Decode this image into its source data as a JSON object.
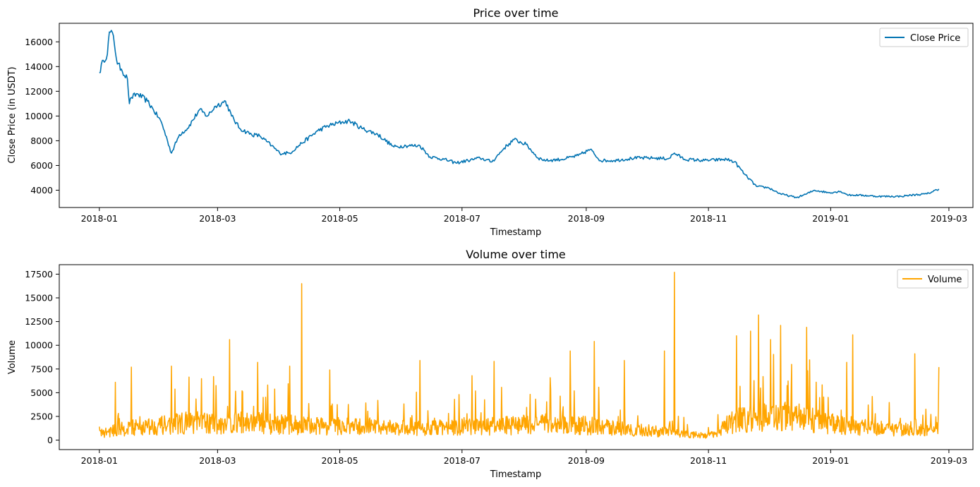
{
  "chart_data": [
    {
      "type": "line",
      "title": "Price over time",
      "xlabel": "Timestamp",
      "ylabel": "Close Price (in USDT)",
      "x_ticks": [
        "2018-01",
        "2018-03",
        "2018-05",
        "2018-07",
        "2018-09",
        "2018-11",
        "2019-01",
        "2019-03"
      ],
      "y_ticks": [
        "4000",
        "6000",
        "8000",
        "10000",
        "12000",
        "14000",
        "16000"
      ],
      "ylim": [
        2600,
        17500
      ],
      "xlim": [
        "2017-12-12",
        "2019-03-13"
      ],
      "legend": "top-right",
      "grid": false,
      "series": [
        {
          "name": "Close Price",
          "color": "#0173b2",
          "x": [
            "2018-01-01",
            "2018-01-03",
            "2018-01-05",
            "2018-01-06",
            "2018-01-08",
            "2018-01-10",
            "2018-01-12",
            "2018-01-15",
            "2018-01-16",
            "2018-01-17",
            "2018-01-20",
            "2018-01-25",
            "2018-01-28",
            "2018-02-01",
            "2018-02-04",
            "2018-02-06",
            "2018-02-10",
            "2018-02-14",
            "2018-02-20",
            "2018-02-24",
            "2018-02-28",
            "2018-03-05",
            "2018-03-08",
            "2018-03-12",
            "2018-03-18",
            "2018-03-22",
            "2018-03-28",
            "2018-04-01",
            "2018-04-06",
            "2018-04-12",
            "2018-04-20",
            "2018-04-25",
            "2018-05-02",
            "2018-05-06",
            "2018-05-12",
            "2018-05-20",
            "2018-05-28",
            "2018-06-03",
            "2018-06-10",
            "2018-06-15",
            "2018-06-22",
            "2018-06-28",
            "2018-07-04",
            "2018-07-10",
            "2018-07-16",
            "2018-07-22",
            "2018-07-27",
            "2018-08-02",
            "2018-08-08",
            "2018-08-12",
            "2018-08-20",
            "2018-08-28",
            "2018-09-03",
            "2018-09-08",
            "2018-09-15",
            "2018-09-25",
            "2018-10-05",
            "2018-10-12",
            "2018-10-15",
            "2018-10-20",
            "2018-10-30",
            "2018-11-10",
            "2018-11-14",
            "2018-11-19",
            "2018-11-25",
            "2018-12-01",
            "2018-12-07",
            "2018-12-15",
            "2018-12-20",
            "2018-12-24",
            "2018-12-31",
            "2019-01-06",
            "2019-01-10",
            "2019-01-15",
            "2019-01-25",
            "2019-02-05",
            "2019-02-10",
            "2019-02-18",
            "2019-02-24"
          ],
          "values": [
            13500,
            14500,
            15000,
            16800,
            16500,
            14200,
            13800,
            13000,
            11000,
            11500,
            11800,
            11200,
            10500,
            9500,
            8000,
            7000,
            8500,
            9000,
            10500,
            10000,
            10800,
            11200,
            10000,
            9000,
            8500,
            8400,
            7600,
            7000,
            7000,
            7800,
            8800,
            9200,
            9500,
            9600,
            9000,
            8500,
            7500,
            7600,
            7600,
            6700,
            6500,
            6200,
            6400,
            6600,
            6300,
            7400,
            8100,
            7700,
            6600,
            6400,
            6500,
            6800,
            7300,
            6400,
            6400,
            6600,
            6600,
            6550,
            7000,
            6500,
            6400,
            6500,
            6300,
            5300,
            4300,
            4200,
            3700,
            3400,
            3700,
            4000,
            3800,
            3900,
            3600,
            3600,
            3500,
            3500,
            3600,
            3700,
            4100
          ]
        }
      ]
    },
    {
      "type": "line",
      "title": "Volume over time",
      "xlabel": "Timestamp",
      "ylabel": "Volume",
      "x_ticks": [
        "2018-01",
        "2018-03",
        "2018-05",
        "2018-07",
        "2018-09",
        "2018-11",
        "2019-01",
        "2019-03"
      ],
      "y_ticks": [
        "0",
        "2500",
        "5000",
        "7500",
        "10000",
        "12500",
        "15000",
        "17500"
      ],
      "ylim": [
        -1000,
        18500
      ],
      "xlim": [
        "2017-12-12",
        "2019-03-13"
      ],
      "legend": "top-right",
      "grid": false,
      "series": [
        {
          "name": "Volume",
          "color": "#ffa500",
          "baseline_x": [
            "2018-01-01",
            "2018-01-15",
            "2018-02-01",
            "2018-02-15",
            "2018-03-01",
            "2018-03-15",
            "2018-04-01",
            "2018-04-15",
            "2018-05-01",
            "2018-05-15",
            "2018-06-01",
            "2018-06-15",
            "2018-07-01",
            "2018-07-15",
            "2018-08-01",
            "2018-08-15",
            "2018-09-01",
            "2018-09-15",
            "2018-10-01",
            "2018-10-15",
            "2018-11-01",
            "2018-11-15",
            "2018-12-01",
            "2018-12-15",
            "2019-01-01",
            "2019-01-15",
            "2019-02-01",
            "2019-02-15",
            "2019-02-24"
          ],
          "baseline_values": [
            800,
            1500,
            1800,
            2200,
            2000,
            2200,
            2000,
            1800,
            1700,
            1600,
            1500,
            1500,
            1600,
            1700,
            1900,
            2000,
            1800,
            1500,
            1200,
            900,
            500,
            2500,
            3000,
            2800,
            2000,
            1700,
            1400,
            1200,
            1200
          ],
          "spikes": [
            {
              "x": "2018-01-09",
              "value": 6100
            },
            {
              "x": "2018-01-17",
              "value": 7700
            },
            {
              "x": "2018-02-06",
              "value": 7800
            },
            {
              "x": "2018-02-27",
              "value": 6700
            },
            {
              "x": "2018-03-07",
              "value": 10600
            },
            {
              "x": "2018-03-21",
              "value": 8200
            },
            {
              "x": "2018-04-06",
              "value": 7800
            },
            {
              "x": "2018-04-12",
              "value": 16500
            },
            {
              "x": "2018-04-26",
              "value": 7400
            },
            {
              "x": "2018-06-10",
              "value": 8400
            },
            {
              "x": "2018-07-06",
              "value": 6800
            },
            {
              "x": "2018-07-17",
              "value": 8300
            },
            {
              "x": "2018-08-24",
              "value": 9400
            },
            {
              "x": "2018-09-05",
              "value": 10400
            },
            {
              "x": "2018-09-20",
              "value": 8400
            },
            {
              "x": "2018-10-10",
              "value": 9400
            },
            {
              "x": "2018-10-15",
              "value": 17700
            },
            {
              "x": "2018-11-15",
              "value": 11000
            },
            {
              "x": "2018-11-22",
              "value": 11500
            },
            {
              "x": "2018-11-26",
              "value": 13200
            },
            {
              "x": "2018-12-02",
              "value": 10600
            },
            {
              "x": "2018-12-07",
              "value": 12100
            },
            {
              "x": "2018-12-20",
              "value": 11900
            },
            {
              "x": "2019-01-09",
              "value": 8200
            },
            {
              "x": "2019-01-12",
              "value": 11100
            },
            {
              "x": "2019-02-12",
              "value": 9100
            },
            {
              "x": "2019-02-24",
              "value": 7700
            }
          ]
        }
      ]
    }
  ]
}
